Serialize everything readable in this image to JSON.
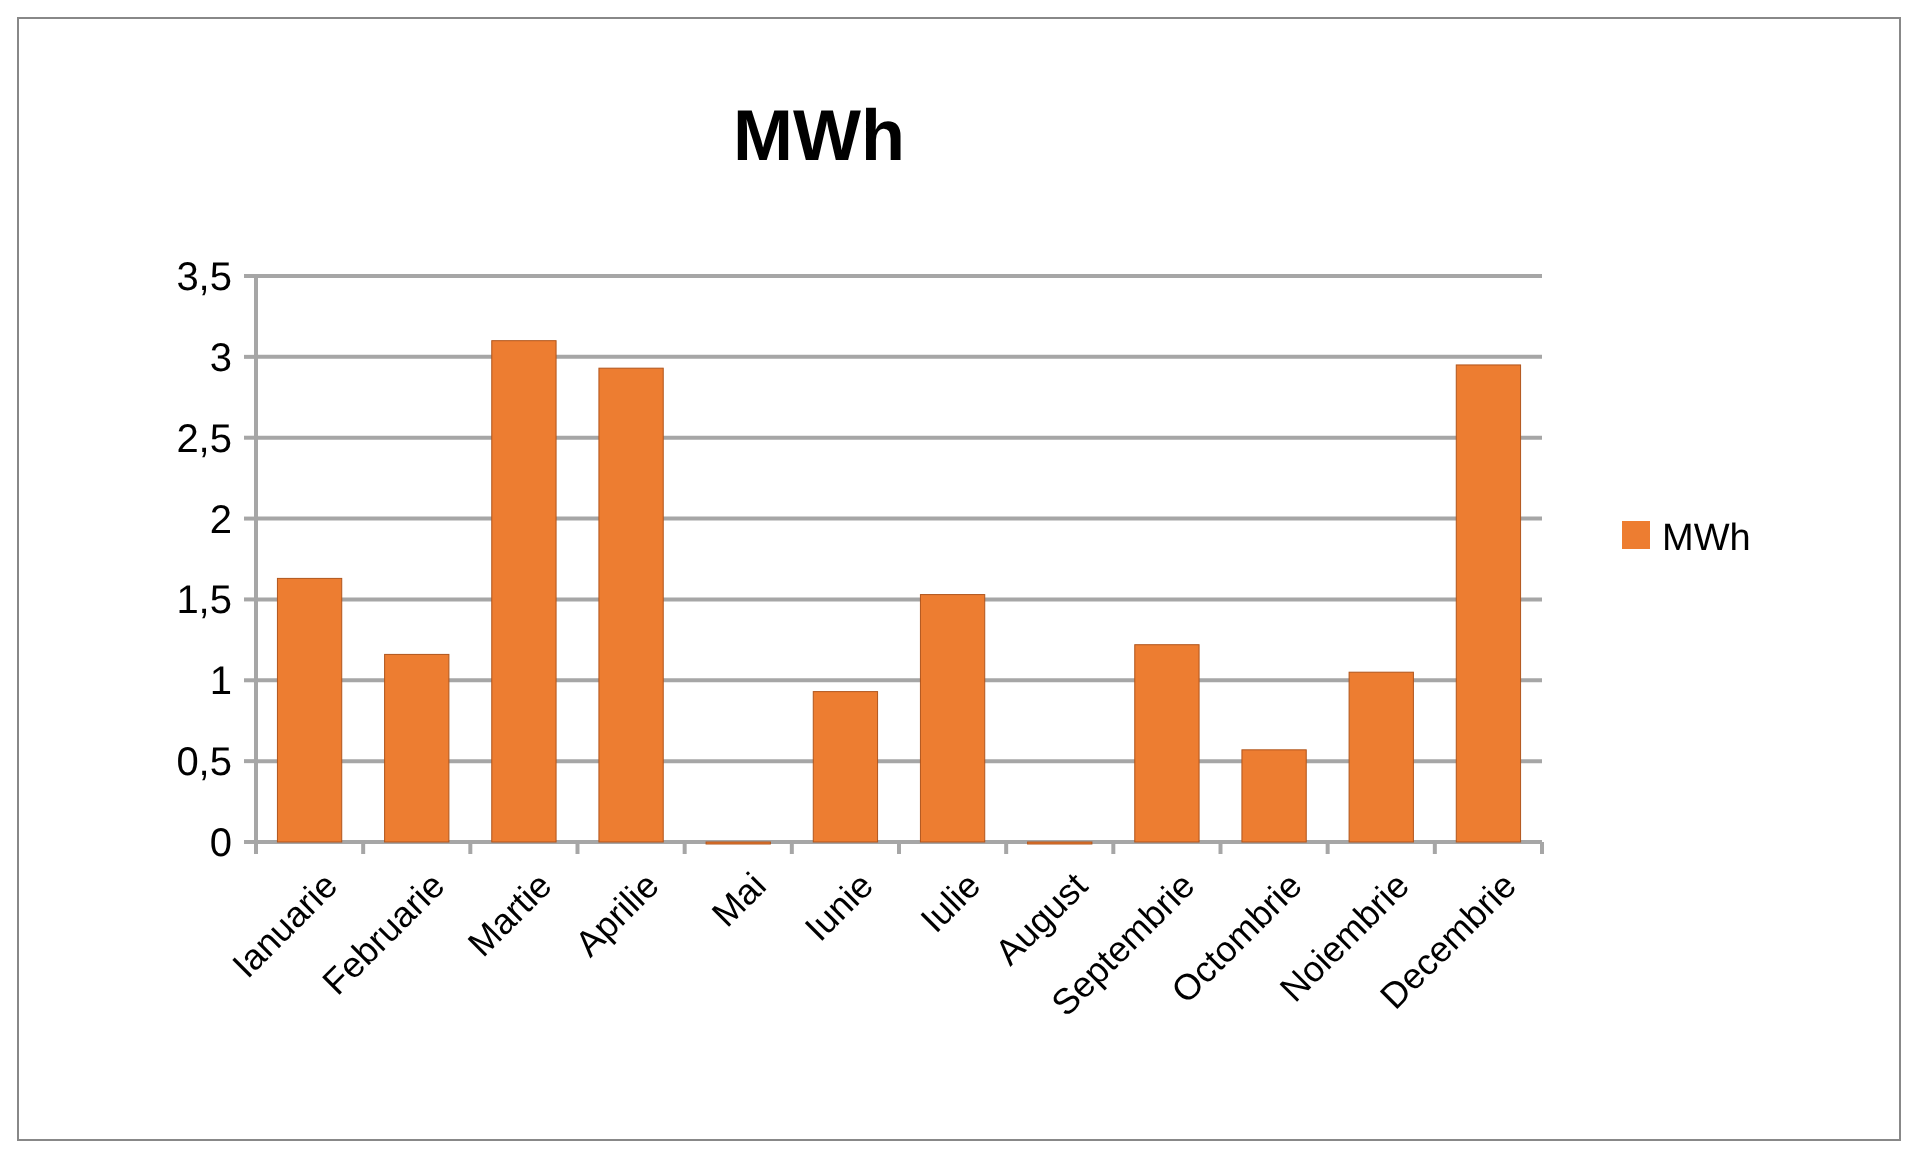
{
  "chart_data": {
    "type": "bar",
    "title": "MWh",
    "categories": [
      "Ianuarie",
      "Februarie",
      "Martie",
      "Aprilie",
      "Mai",
      "Iunie",
      "Iulie",
      "August",
      "Septembrie",
      "Octombrie",
      "Noiembrie",
      "Decembrie"
    ],
    "series": [
      {
        "name": "MWh",
        "color": "#ed7d31",
        "values": [
          1.63,
          1.16,
          3.1,
          2.93,
          0,
          0.93,
          1.53,
          0,
          1.22,
          0.57,
          1.05,
          2.95
        ]
      }
    ],
    "ylim": [
      0,
      3.5
    ],
    "yticks": [
      0,
      {
        "value": 0.5,
        "label": "0,5"
      },
      1,
      {
        "value": 1.5,
        "label": "1,5"
      },
      2,
      {
        "value": 2.5,
        "label": "2,5"
      },
      3,
      {
        "value": 3.5,
        "label": "3,5"
      }
    ],
    "grid": "y",
    "legend": "right"
  }
}
